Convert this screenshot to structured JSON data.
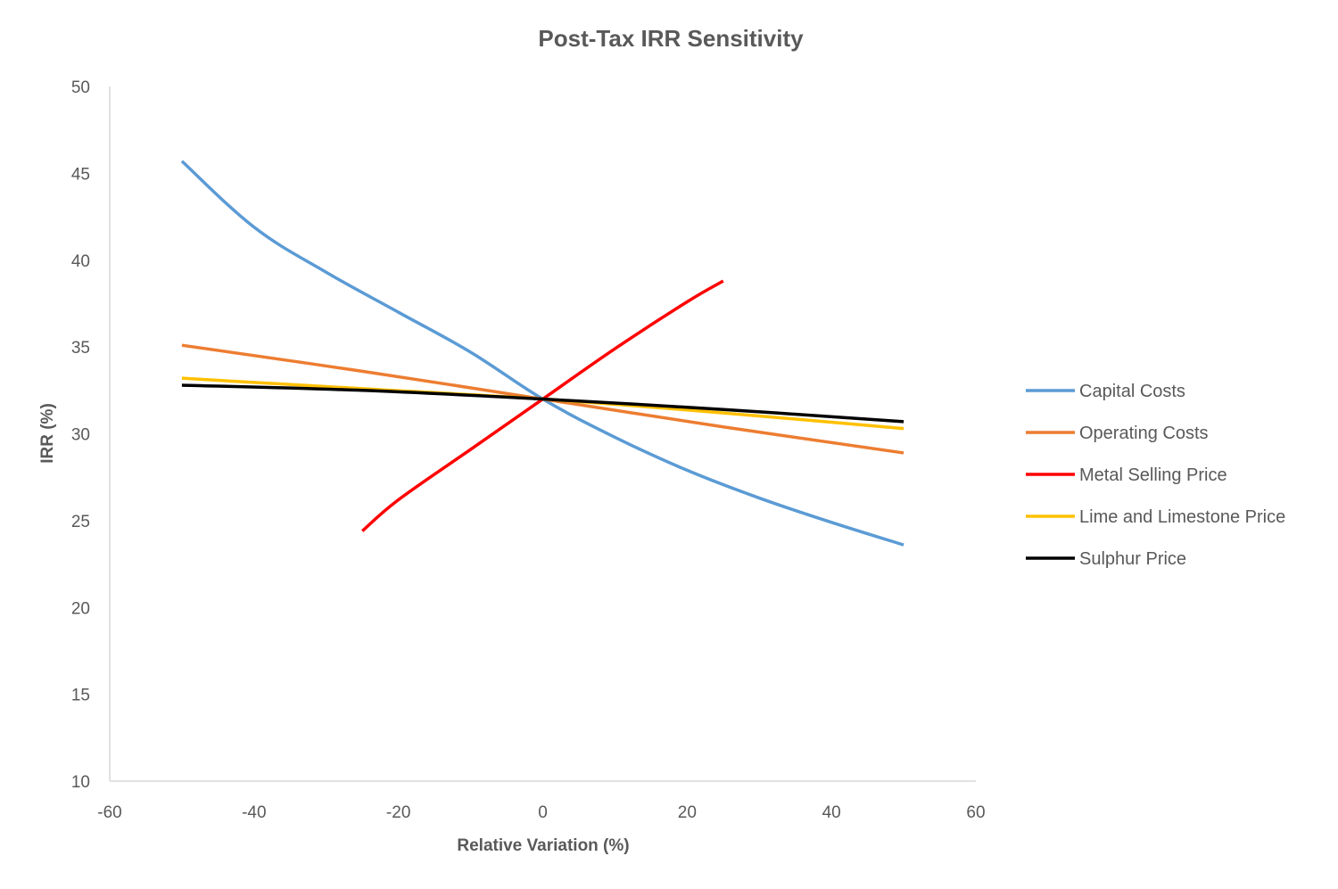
{
  "chart_data": {
    "type": "line",
    "title": "Post-Tax IRR Sensitivity",
    "xlabel": "Relative Variation (%)",
    "ylabel": "IRR (%)",
    "xlim": [
      -60,
      60
    ],
    "ylim": [
      10,
      50
    ],
    "x_ticks": [
      -60,
      -40,
      -20,
      0,
      20,
      40,
      60
    ],
    "y_ticks": [
      10,
      15,
      20,
      25,
      30,
      35,
      40,
      45,
      50
    ],
    "grid": false,
    "legend_position": "right",
    "series": [
      {
        "name": "Capital Costs",
        "color": "#5B9BD5",
        "x": [
          -50,
          -40,
          -30,
          -20,
          -10,
          0,
          10,
          20,
          30,
          40,
          50
        ],
        "y": [
          45.7,
          41.9,
          39.3,
          37.0,
          34.7,
          32.0,
          29.8,
          27.9,
          26.3,
          24.9,
          23.6
        ]
      },
      {
        "name": "Operating Costs",
        "color": "#ED7D31",
        "x": [
          -50,
          -25,
          0,
          25,
          50
        ],
        "y": [
          35.1,
          33.6,
          32.0,
          30.4,
          28.9
        ]
      },
      {
        "name": "Metal Selling Price",
        "color": "#FF0000",
        "x": [
          -25,
          -20,
          -10,
          0,
          10,
          20,
          25
        ],
        "y": [
          24.4,
          26.2,
          29.1,
          32.0,
          34.9,
          37.6,
          38.8
        ]
      },
      {
        "name": "Lime and Limestone Price",
        "color": "#FFC000",
        "x": [
          -50,
          -25,
          0,
          25,
          50
        ],
        "y": [
          33.2,
          32.6,
          32.0,
          31.2,
          30.3
        ]
      },
      {
        "name": "Sulphur Price",
        "color": "#000000",
        "x": [
          -50,
          -25,
          0,
          25,
          50
        ],
        "y": [
          32.8,
          32.5,
          32.0,
          31.4,
          30.7
        ]
      }
    ]
  }
}
